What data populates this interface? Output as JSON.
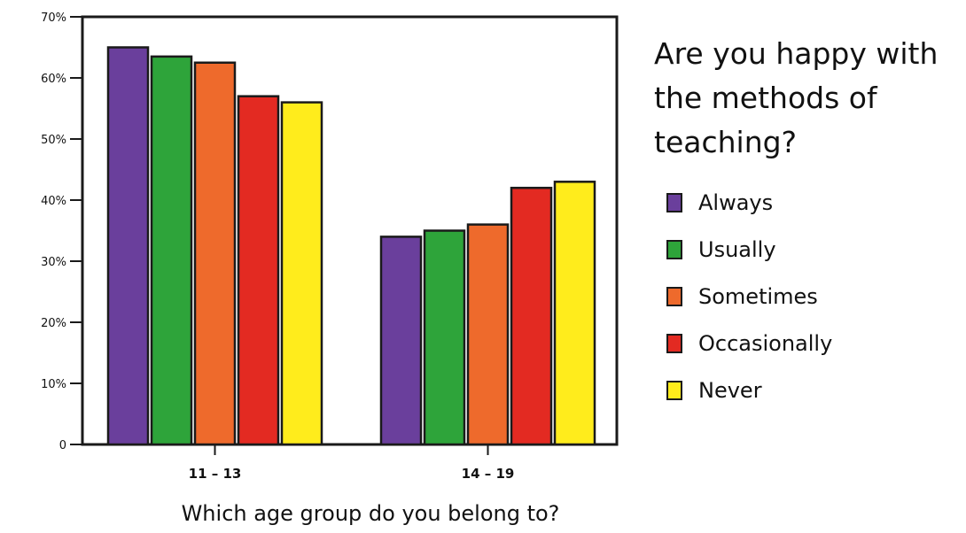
{
  "chart_data": {
    "type": "bar",
    "title": "Are you happy with the methods of teaching?",
    "xlabel": "Which age group do you belong to?",
    "ylabel": "",
    "ylim": [
      0,
      70
    ],
    "y_ticks": [
      0,
      10,
      20,
      30,
      40,
      50,
      60,
      70
    ],
    "y_tick_labels": [
      "0",
      "10%",
      "20%",
      "30%",
      "40%",
      "50%",
      "60%",
      "70%"
    ],
    "categories": [
      "11 – 13",
      "14 – 19"
    ],
    "series": [
      {
        "name": "Always",
        "color": "#6a3f9c",
        "values": [
          65,
          34
        ]
      },
      {
        "name": "Usually",
        "color": "#2ea43a",
        "values": [
          63.5,
          35
        ]
      },
      {
        "name": "Sometimes",
        "color": "#ee6a2c",
        "values": [
          62.5,
          36
        ]
      },
      {
        "name": "Occasionally",
        "color": "#e32a22",
        "values": [
          57,
          42
        ]
      },
      {
        "name": "Never",
        "color": "#ffec1c",
        "values": [
          56,
          43
        ]
      }
    ],
    "legend_position": "right",
    "grid": false
  }
}
